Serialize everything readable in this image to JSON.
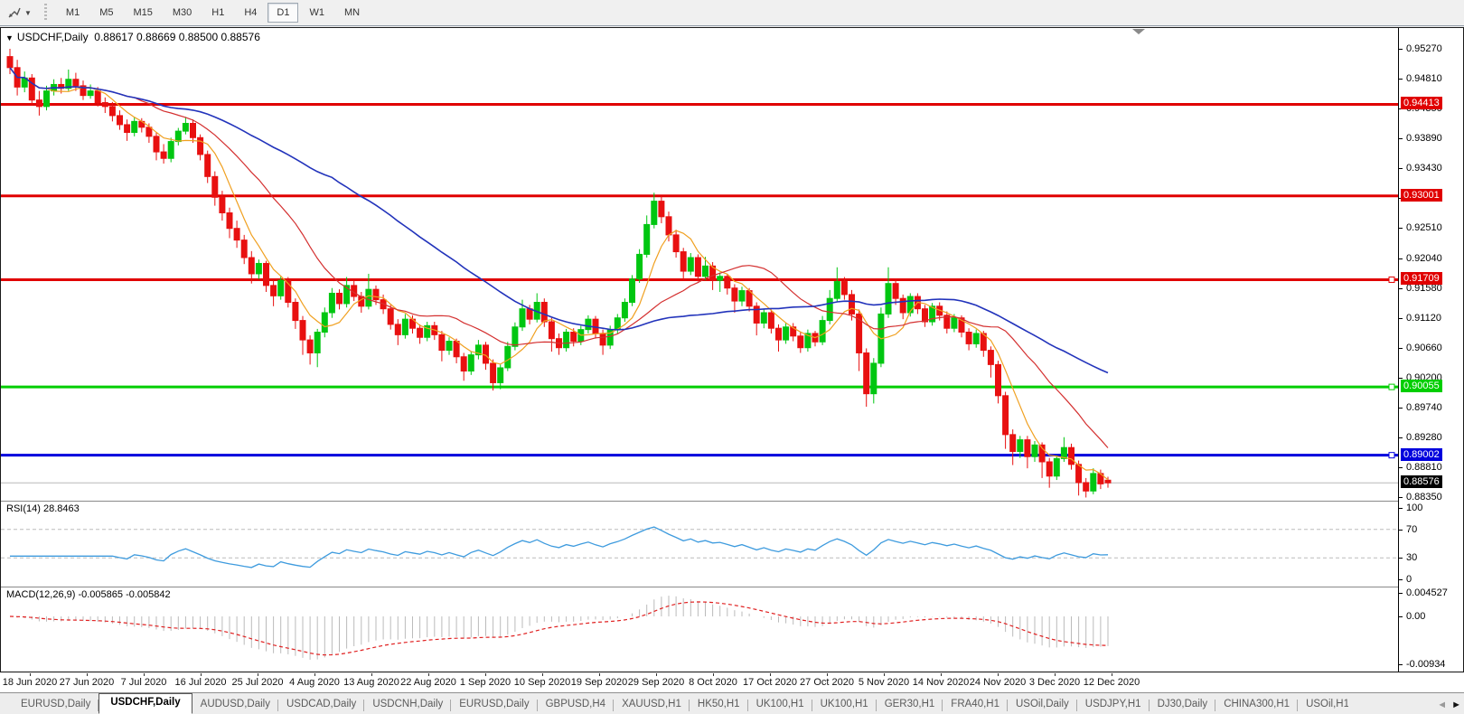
{
  "toolbar": {
    "timeframes": [
      "M1",
      "M5",
      "M15",
      "M30",
      "H1",
      "H4",
      "D1",
      "W1",
      "MN"
    ],
    "active_timeframe": "D1"
  },
  "chart_header": {
    "symbol": "USDCHF,Daily",
    "open": "0.88617",
    "high": "0.88669",
    "low": "0.88500",
    "close": "0.88576"
  },
  "price_axis": {
    "ticks": [
      "0.95270",
      "0.94810",
      "0.94350",
      "0.93890",
      "0.93430",
      "0.92970",
      "0.92510",
      "0.92040",
      "0.91580",
      "0.91120",
      "0.90660",
      "0.90200",
      "0.89740",
      "0.89280",
      "0.88810",
      "0.88350"
    ],
    "levels": [
      {
        "price": 0.94413,
        "label": "0.94413",
        "color": "#e00000",
        "text": "#ffffff",
        "handle": false
      },
      {
        "price": 0.93001,
        "label": "0.93001",
        "color": "#e00000",
        "text": "#ffffff",
        "handle": false
      },
      {
        "price": 0.91709,
        "label": "0.91709",
        "color": "#e00000",
        "text": "#ffffff",
        "handle": true
      },
      {
        "price": 0.90055,
        "label": "0.90055",
        "color": "#00ce00",
        "text": "#ffffff",
        "handle": true
      },
      {
        "price": 0.89002,
        "label": "0.89002",
        "color": "#0000dd",
        "text": "#ffffff",
        "handle": true
      }
    ],
    "last_price": {
      "price": 0.88576,
      "label": "0.88576",
      "bg": "#000000",
      "text": "#ffffff"
    }
  },
  "chart_data": {
    "type": "candlestick",
    "symbol": "USDCHF",
    "timeframe": "Daily",
    "up_color": "#00c611",
    "down_color": "#e81010",
    "moving_averages": [
      {
        "period": 6,
        "color": "#f0a020"
      },
      {
        "period": 18,
        "color": "#d43030"
      },
      {
        "period": 45,
        "color": "#2233bb"
      }
    ],
    "horizontal_levels": [
      0.94413,
      0.93001,
      0.91709,
      0.90055,
      0.89002
    ],
    "candles": [
      [
        0.9515,
        0.9527,
        0.9488,
        0.9498
      ],
      [
        0.9498,
        0.951,
        0.9455,
        0.9468
      ],
      [
        0.9468,
        0.9492,
        0.946,
        0.9482
      ],
      [
        0.9482,
        0.9488,
        0.944,
        0.9448
      ],
      [
        0.9448,
        0.9462,
        0.9424,
        0.9438
      ],
      [
        0.9438,
        0.947,
        0.9432,
        0.9462
      ],
      [
        0.9462,
        0.948,
        0.9455,
        0.9472
      ],
      [
        0.9472,
        0.9482,
        0.9458,
        0.9466
      ],
      [
        0.9466,
        0.9495,
        0.9462,
        0.948
      ],
      [
        0.948,
        0.949,
        0.9462,
        0.947
      ],
      [
        0.947,
        0.9478,
        0.9448,
        0.9455
      ],
      [
        0.9455,
        0.9472,
        0.945,
        0.9462
      ],
      [
        0.9462,
        0.9468,
        0.9438,
        0.9444
      ],
      [
        0.9444,
        0.9452,
        0.9428,
        0.9438
      ],
      [
        0.9438,
        0.9445,
        0.9415,
        0.9424
      ],
      [
        0.9424,
        0.9432,
        0.9402,
        0.941
      ],
      [
        0.941,
        0.9418,
        0.9385,
        0.9398
      ],
      [
        0.9398,
        0.9422,
        0.9392,
        0.9415
      ],
      [
        0.9415,
        0.942,
        0.9398,
        0.9406
      ],
      [
        0.9406,
        0.9412,
        0.9382,
        0.9392
      ],
      [
        0.9392,
        0.9398,
        0.9355,
        0.9368
      ],
      [
        0.9368,
        0.938,
        0.935,
        0.9358
      ],
      [
        0.9358,
        0.939,
        0.9352,
        0.9384
      ],
      [
        0.9384,
        0.9405,
        0.9378,
        0.94
      ],
      [
        0.94,
        0.9422,
        0.9395,
        0.9412
      ],
      [
        0.9412,
        0.9418,
        0.9382,
        0.939
      ],
      [
        0.939,
        0.9395,
        0.9355,
        0.9364
      ],
      [
        0.9364,
        0.937,
        0.932,
        0.933
      ],
      [
        0.933,
        0.9338,
        0.9285,
        0.9298
      ],
      [
        0.9298,
        0.9308,
        0.9262,
        0.9274
      ],
      [
        0.9274,
        0.9282,
        0.9235,
        0.925
      ],
      [
        0.925,
        0.9262,
        0.922,
        0.9232
      ],
      [
        0.9232,
        0.924,
        0.9195,
        0.9205
      ],
      [
        0.9205,
        0.9215,
        0.9165,
        0.918
      ],
      [
        0.918,
        0.9202,
        0.9172,
        0.9196
      ],
      [
        0.9196,
        0.92,
        0.9152,
        0.9162
      ],
      [
        0.9162,
        0.917,
        0.913,
        0.9146
      ],
      [
        0.9146,
        0.9176,
        0.914,
        0.917
      ],
      [
        0.917,
        0.9175,
        0.9128,
        0.9136
      ],
      [
        0.9136,
        0.9142,
        0.9095,
        0.9108
      ],
      [
        0.9108,
        0.9115,
        0.9055,
        0.9078
      ],
      [
        0.9078,
        0.9085,
        0.904,
        0.9058
      ],
      [
        0.9058,
        0.9095,
        0.9036,
        0.909
      ],
      [
        0.909,
        0.9128,
        0.9082,
        0.912
      ],
      [
        0.912,
        0.9158,
        0.9112,
        0.915
      ],
      [
        0.915,
        0.9156,
        0.9125,
        0.9134
      ],
      [
        0.9134,
        0.9175,
        0.9128,
        0.9162
      ],
      [
        0.9162,
        0.917,
        0.9138,
        0.9145
      ],
      [
        0.9145,
        0.9152,
        0.912,
        0.913
      ],
      [
        0.913,
        0.918,
        0.9125,
        0.9156
      ],
      [
        0.9156,
        0.9162,
        0.9132,
        0.914
      ],
      [
        0.914,
        0.9148,
        0.9118,
        0.9126
      ],
      [
        0.9126,
        0.9132,
        0.9094,
        0.9102
      ],
      [
        0.9102,
        0.911,
        0.907,
        0.9086
      ],
      [
        0.9086,
        0.9118,
        0.908,
        0.911
      ],
      [
        0.911,
        0.9116,
        0.9088,
        0.9096
      ],
      [
        0.9096,
        0.9102,
        0.9072,
        0.9082
      ],
      [
        0.9082,
        0.9106,
        0.9076,
        0.91
      ],
      [
        0.91,
        0.9106,
        0.9078,
        0.9086
      ],
      [
        0.9086,
        0.9092,
        0.9045,
        0.9062
      ],
      [
        0.9062,
        0.9082,
        0.9055,
        0.9076
      ],
      [
        0.9076,
        0.908,
        0.9042,
        0.9052
      ],
      [
        0.9052,
        0.9058,
        0.9015,
        0.903
      ],
      [
        0.903,
        0.906,
        0.9024,
        0.9055
      ],
      [
        0.9055,
        0.9078,
        0.9048,
        0.907
      ],
      [
        0.907,
        0.9075,
        0.9032,
        0.9042
      ],
      [
        0.9042,
        0.9048,
        0.9,
        0.9012
      ],
      [
        0.9012,
        0.904,
        0.9002,
        0.9035
      ],
      [
        0.9035,
        0.9075,
        0.903,
        0.9068
      ],
      [
        0.9068,
        0.9105,
        0.9062,
        0.9098
      ],
      [
        0.9098,
        0.914,
        0.9092,
        0.9126
      ],
      [
        0.9126,
        0.9132,
        0.9102,
        0.911
      ],
      [
        0.911,
        0.915,
        0.9105,
        0.9136
      ],
      [
        0.9136,
        0.9142,
        0.9098,
        0.9106
      ],
      [
        0.9106,
        0.9112,
        0.906,
        0.908
      ],
      [
        0.908,
        0.9088,
        0.9055,
        0.9066
      ],
      [
        0.9066,
        0.9095,
        0.906,
        0.909
      ],
      [
        0.909,
        0.9096,
        0.9068,
        0.9076
      ],
      [
        0.9076,
        0.91,
        0.907,
        0.9094
      ],
      [
        0.9094,
        0.9116,
        0.9088,
        0.911
      ],
      [
        0.911,
        0.9115,
        0.908,
        0.9088
      ],
      [
        0.9088,
        0.9094,
        0.9055,
        0.907
      ],
      [
        0.907,
        0.91,
        0.9064,
        0.9094
      ],
      [
        0.9094,
        0.9118,
        0.9088,
        0.9112
      ],
      [
        0.9112,
        0.9142,
        0.9106,
        0.9136
      ],
      [
        0.9136,
        0.9178,
        0.913,
        0.9172
      ],
      [
        0.9172,
        0.9218,
        0.9166,
        0.921
      ],
      [
        0.921,
        0.927,
        0.9205,
        0.9256
      ],
      [
        0.9256,
        0.9305,
        0.925,
        0.9292
      ],
      [
        0.9292,
        0.93,
        0.9258,
        0.9268
      ],
      [
        0.9268,
        0.9276,
        0.923,
        0.924
      ],
      [
        0.924,
        0.9248,
        0.9205,
        0.9214
      ],
      [
        0.9214,
        0.922,
        0.917,
        0.9184
      ],
      [
        0.9184,
        0.9212,
        0.9178,
        0.9205
      ],
      [
        0.9205,
        0.921,
        0.9168,
        0.9176
      ],
      [
        0.9176,
        0.9206,
        0.917,
        0.9192
      ],
      [
        0.9192,
        0.9198,
        0.9155,
        0.917
      ],
      [
        0.917,
        0.9182,
        0.9152,
        0.9176
      ],
      [
        0.9176,
        0.918,
        0.9148,
        0.9158
      ],
      [
        0.9158,
        0.9164,
        0.912,
        0.9138
      ],
      [
        0.9138,
        0.916,
        0.913,
        0.9154
      ],
      [
        0.9154,
        0.9158,
        0.9122,
        0.913
      ],
      [
        0.913,
        0.9136,
        0.9085,
        0.9104
      ],
      [
        0.9104,
        0.9126,
        0.9096,
        0.912
      ],
      [
        0.912,
        0.9125,
        0.9088,
        0.9096
      ],
      [
        0.9096,
        0.9102,
        0.906,
        0.9078
      ],
      [
        0.9078,
        0.9104,
        0.9072,
        0.9098
      ],
      [
        0.9098,
        0.9104,
        0.9076,
        0.9084
      ],
      [
        0.9084,
        0.909,
        0.9058,
        0.9066
      ],
      [
        0.9066,
        0.9094,
        0.906,
        0.9088
      ],
      [
        0.9088,
        0.9092,
        0.9068,
        0.9075
      ],
      [
        0.9075,
        0.9115,
        0.907,
        0.9108
      ],
      [
        0.9108,
        0.9155,
        0.9102,
        0.9142
      ],
      [
        0.9142,
        0.919,
        0.9136,
        0.9168
      ],
      [
        0.9168,
        0.9175,
        0.914,
        0.9148
      ],
      [
        0.9148,
        0.9155,
        0.9108,
        0.9118
      ],
      [
        0.9118,
        0.9125,
        0.903,
        0.9058
      ],
      [
        0.9058,
        0.9065,
        0.8975,
        0.8995
      ],
      [
        0.8995,
        0.905,
        0.898,
        0.9042
      ],
      [
        0.9042,
        0.9128,
        0.9036,
        0.9118
      ],
      [
        0.9118,
        0.919,
        0.9112,
        0.9165
      ],
      [
        0.9165,
        0.9172,
        0.9132,
        0.9142
      ],
      [
        0.9142,
        0.9148,
        0.911,
        0.912
      ],
      [
        0.912,
        0.915,
        0.9114,
        0.9145
      ],
      [
        0.9145,
        0.915,
        0.9118,
        0.9126
      ],
      [
        0.9126,
        0.9132,
        0.9098,
        0.9106
      ],
      [
        0.9106,
        0.9135,
        0.91,
        0.913
      ],
      [
        0.913,
        0.9136,
        0.9108,
        0.9116
      ],
      [
        0.9116,
        0.9122,
        0.9088,
        0.9096
      ],
      [
        0.9096,
        0.9118,
        0.909,
        0.9112
      ],
      [
        0.9112,
        0.9116,
        0.9082,
        0.909
      ],
      [
        0.909,
        0.9096,
        0.9062,
        0.9072
      ],
      [
        0.9072,
        0.9094,
        0.9066,
        0.9088
      ],
      [
        0.9088,
        0.9092,
        0.9052,
        0.9062
      ],
      [
        0.9062,
        0.9068,
        0.902,
        0.904
      ],
      [
        0.904,
        0.9046,
        0.898,
        0.8992
      ],
      [
        0.8992,
        0.8998,
        0.891,
        0.8932
      ],
      [
        0.8932,
        0.894,
        0.8885,
        0.8906
      ],
      [
        0.8906,
        0.893,
        0.8896,
        0.8924
      ],
      [
        0.8924,
        0.893,
        0.888,
        0.8898
      ],
      [
        0.8898,
        0.8922,
        0.889,
        0.8916
      ],
      [
        0.8916,
        0.892,
        0.8865,
        0.889
      ],
      [
        0.889,
        0.8896,
        0.885,
        0.8868
      ],
      [
        0.8868,
        0.89,
        0.8862,
        0.8895
      ],
      [
        0.8895,
        0.8928,
        0.889,
        0.8912
      ],
      [
        0.8912,
        0.8918,
        0.8878,
        0.8886
      ],
      [
        0.8886,
        0.8892,
        0.8838,
        0.8858
      ],
      [
        0.8858,
        0.8865,
        0.8835,
        0.8845
      ],
      [
        0.8845,
        0.888,
        0.884,
        0.8872
      ],
      [
        0.8872,
        0.8878,
        0.8848,
        0.8856
      ],
      [
        0.88617,
        0.88669,
        0.885,
        0.88576
      ]
    ],
    "rsi": {
      "label": "RSI(14) 28.8463",
      "period": 14,
      "value": 28.8463,
      "levels": [
        70,
        30
      ],
      "axis_ticks": [
        "100",
        "70",
        "30",
        "0"
      ],
      "color": "#3e9bde"
    },
    "macd": {
      "label": "MACD(12,26,9) -0.005865 -0.005842",
      "fast": 12,
      "slow": 26,
      "signal": 9,
      "main_value": "-0.005865",
      "signal_value": "-0.005842",
      "axis_ticks": [
        "0.004527",
        "0.00",
        "-0.00934"
      ],
      "bar_color": "#bbbbbb",
      "signal_color": "#e02020"
    }
  },
  "date_axis": {
    "labels": [
      "18 Jun 2020",
      "27 Jun 2020",
      "7 Jul 2020",
      "16 Jul 2020",
      "25 Jul 2020",
      "4 Aug 2020",
      "13 Aug 2020",
      "22 Aug 2020",
      "1 Sep 2020",
      "10 Sep 2020",
      "19 Sep 2020",
      "29 Sep 2020",
      "8 Oct 2020",
      "17 Oct 2020",
      "27 Oct 2020",
      "5 Nov 2020",
      "14 Nov 2020",
      "24 Nov 2020",
      "3 Dec 2020",
      "12 Dec 2020"
    ]
  },
  "tabs": {
    "items": [
      {
        "label": "EURUSD,Daily",
        "active": false
      },
      {
        "label": "USDCHF,Daily",
        "active": true
      },
      {
        "label": "AUDUSD,Daily",
        "active": false
      },
      {
        "label": "USDCAD,Daily",
        "active": false
      },
      {
        "label": "USDCNH,Daily",
        "active": false
      },
      {
        "label": "EURUSD,Daily",
        "active": false
      },
      {
        "label": "GBPUSD,H4",
        "active": false
      },
      {
        "label": "XAUUSD,H1",
        "active": false
      },
      {
        "label": "HK50,H1",
        "active": false
      },
      {
        "label": "UK100,H1",
        "active": false
      },
      {
        "label": "UK100,H1",
        "active": false
      },
      {
        "label": "GER30,H1",
        "active": false
      },
      {
        "label": "FRA40,H1",
        "active": false
      },
      {
        "label": "USOil,Daily",
        "active": false
      },
      {
        "label": "USDJPY,H1",
        "active": false
      },
      {
        "label": "DJ30,Daily",
        "active": false
      },
      {
        "label": "CHINA300,H1",
        "active": false
      },
      {
        "label": "USOil,H1",
        "active": false,
        "truncated": true
      }
    ],
    "scroll_left_icon": "◄",
    "scroll_right_icon": "►"
  }
}
